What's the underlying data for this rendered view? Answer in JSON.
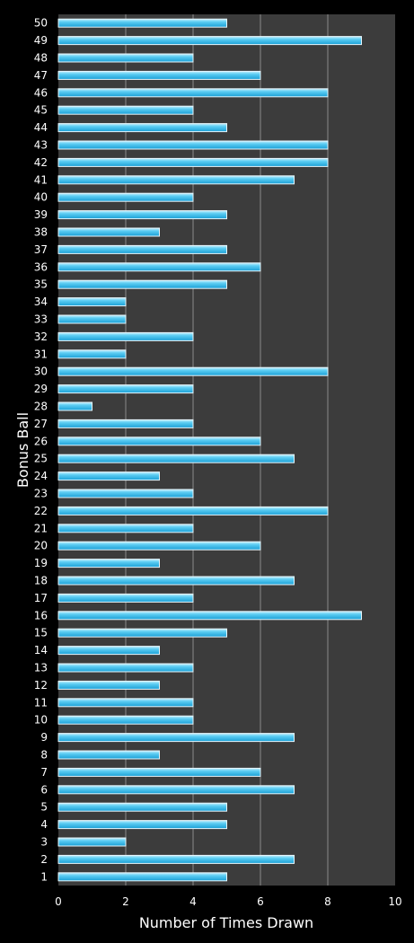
{
  "chart_data": {
    "type": "bar",
    "orientation": "horizontal",
    "xlabel": "Number of Times Drawn",
    "ylabel": "Bonus Ball",
    "xlim": [
      0,
      10
    ],
    "xticks": [
      0,
      2,
      4,
      6,
      8,
      10
    ],
    "grid": "vertical",
    "colors": {
      "bar": "#29b6e8",
      "bar_highlight": "#aee9fb",
      "bar_edge": "#e6f6fc",
      "plot_bg": "#3c3c3c",
      "background": "#000000",
      "gridline": "#8a8a8a"
    },
    "categories": [
      "1",
      "2",
      "3",
      "4",
      "5",
      "6",
      "7",
      "8",
      "9",
      "10",
      "11",
      "12",
      "13",
      "14",
      "15",
      "16",
      "17",
      "18",
      "19",
      "20",
      "21",
      "22",
      "23",
      "24",
      "25",
      "26",
      "27",
      "28",
      "29",
      "30",
      "31",
      "32",
      "33",
      "34",
      "35",
      "36",
      "37",
      "38",
      "39",
      "40",
      "41",
      "42",
      "43",
      "44",
      "45",
      "46",
      "47",
      "48",
      "49",
      "50"
    ],
    "values": [
      5,
      7,
      2,
      5,
      5,
      7,
      6,
      3,
      7,
      4,
      4,
      3,
      4,
      3,
      5,
      9,
      4,
      7,
      3,
      6,
      4,
      8,
      4,
      3,
      7,
      6,
      4,
      1,
      4,
      8,
      2,
      4,
      2,
      2,
      5,
      6,
      5,
      3,
      5,
      4,
      7,
      8,
      8,
      5,
      4,
      8,
      6,
      4,
      9,
      5
    ]
  }
}
